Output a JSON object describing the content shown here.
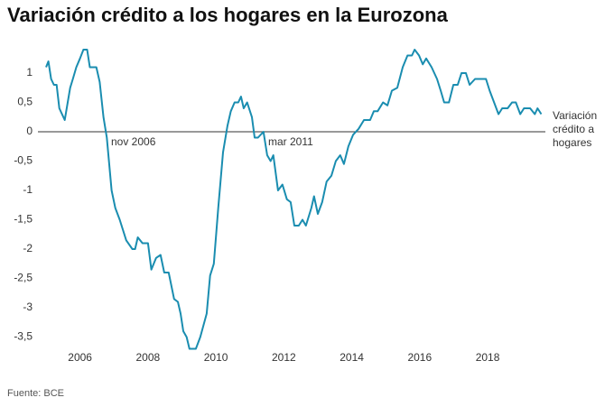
{
  "chart_data": {
    "type": "line",
    "title": "Variación crédito a los hogares en la Eurozona",
    "source": "Fuente: BCE",
    "annotations": [
      "nov 2006",
      "mar 2011"
    ],
    "xlim": [
      2005,
      2019.7
    ],
    "xticks": [
      2006,
      2008,
      2010,
      2012,
      2014,
      2016,
      2018
    ],
    "ylim": [
      -3.7,
      1.45
    ],
    "yticks": [
      {
        "value": -3.5,
        "label": "-3,5"
      },
      -3,
      {
        "value": -2.5,
        "label": "-2,5"
      },
      -2,
      {
        "value": -1.5,
        "label": "-1,5"
      },
      -1,
      {
        "value": -0.5,
        "label": "-0,5"
      },
      0,
      {
        "value": 0.5,
        "label": "0,5"
      },
      1
    ],
    "x": [
      2005.0,
      2005.07,
      2005.15,
      2005.23,
      2005.31,
      2005.39,
      2005.55,
      2005.71,
      2005.79,
      2005.89,
      2006.0,
      2006.1,
      2006.21,
      2006.29,
      2006.48,
      2006.58,
      2006.69,
      2006.79,
      2006.93,
      2007.04,
      2007.17,
      2007.36,
      2007.54,
      2007.62,
      2007.7,
      2007.84,
      2008.0,
      2008.1,
      2008.24,
      2008.37,
      2008.48,
      2008.61,
      2008.77,
      2008.88,
      2008.96,
      2009.04,
      2009.14,
      2009.22,
      2009.41,
      2009.54,
      2009.73,
      2009.83,
      2009.94,
      2010.07,
      2010.21,
      2010.34,
      2010.44,
      2010.55,
      2010.66,
      2010.74,
      2010.82,
      2010.92,
      2011.06,
      2011.14,
      2011.24,
      2011.4,
      2011.51,
      2011.61,
      2011.69,
      2011.83,
      2011.96,
      2012.09,
      2012.2,
      2012.31,
      2012.44,
      2012.55,
      2012.65,
      2012.81,
      2012.89,
      2013.0,
      2013.13,
      2013.26,
      2013.4,
      2013.53,
      2013.66,
      2013.77,
      2013.9,
      2014.04,
      2014.2,
      2014.36,
      2014.54,
      2014.65,
      2014.76,
      2014.92,
      2015.05,
      2015.18,
      2015.34,
      2015.5,
      2015.64,
      2015.77,
      2015.85,
      2015.98,
      2016.09,
      2016.19,
      2016.35,
      2016.51,
      2016.62,
      2016.72,
      2016.86,
      2016.99,
      2017.12,
      2017.23,
      2017.36,
      2017.47,
      2017.63,
      2017.84,
      2017.95,
      2018.06,
      2018.19,
      2018.32,
      2018.43,
      2018.59,
      2018.72,
      2018.83,
      2018.96,
      2019.07,
      2019.25,
      2019.39,
      2019.47,
      2019.58
    ],
    "series": [
      {
        "name": "Variación crédito a hogares",
        "color": "#1a8db0",
        "values": [
          1.1,
          1.2,
          0.9,
          0.8,
          0.8,
          0.4,
          0.2,
          0.75,
          0.9,
          1.1,
          1.25,
          1.4,
          1.4,
          1.1,
          1.1,
          0.85,
          0.25,
          -0.1,
          -1,
          -1.3,
          -1.5,
          -1.85,
          -2,
          -2,
          -1.8,
          -1.9,
          -1.9,
          -2.35,
          -2.15,
          -2.1,
          -2.4,
          -2.4,
          -2.85,
          -2.9,
          -3.1,
          -3.4,
          -3.5,
          -3.7,
          -3.7,
          -3.5,
          -3.1,
          -2.45,
          -2.25,
          -1.3,
          -0.35,
          0.1,
          0.35,
          0.5,
          0.5,
          0.6,
          0.4,
          0.5,
          0.25,
          -0.1,
          -0.1,
          0,
          -0.4,
          -0.5,
          -0.4,
          -1,
          -0.9,
          -1.15,
          -1.2,
          -1.6,
          -1.6,
          -1.5,
          -1.6,
          -1.3,
          -1.1,
          -1.4,
          -1.2,
          -0.85,
          -0.75,
          -0.5,
          -0.4,
          -0.55,
          -0.25,
          -0.05,
          0.05,
          0.2,
          0.2,
          0.35,
          0.35,
          0.5,
          0.45,
          0.7,
          0.75,
          1.1,
          1.3,
          1.3,
          1.4,
          1.3,
          1.15,
          1.25,
          1.1,
          0.9,
          0.7,
          0.5,
          0.5,
          0.8,
          0.8,
          1,
          1,
          0.8,
          0.9,
          0.9,
          0.9,
          0.7,
          0.5,
          0.3,
          0.4,
          0.4,
          0.5,
          0.5,
          0.3,
          0.4,
          0.4,
          0.3,
          0.4,
          0.3
        ]
      }
    ]
  }
}
